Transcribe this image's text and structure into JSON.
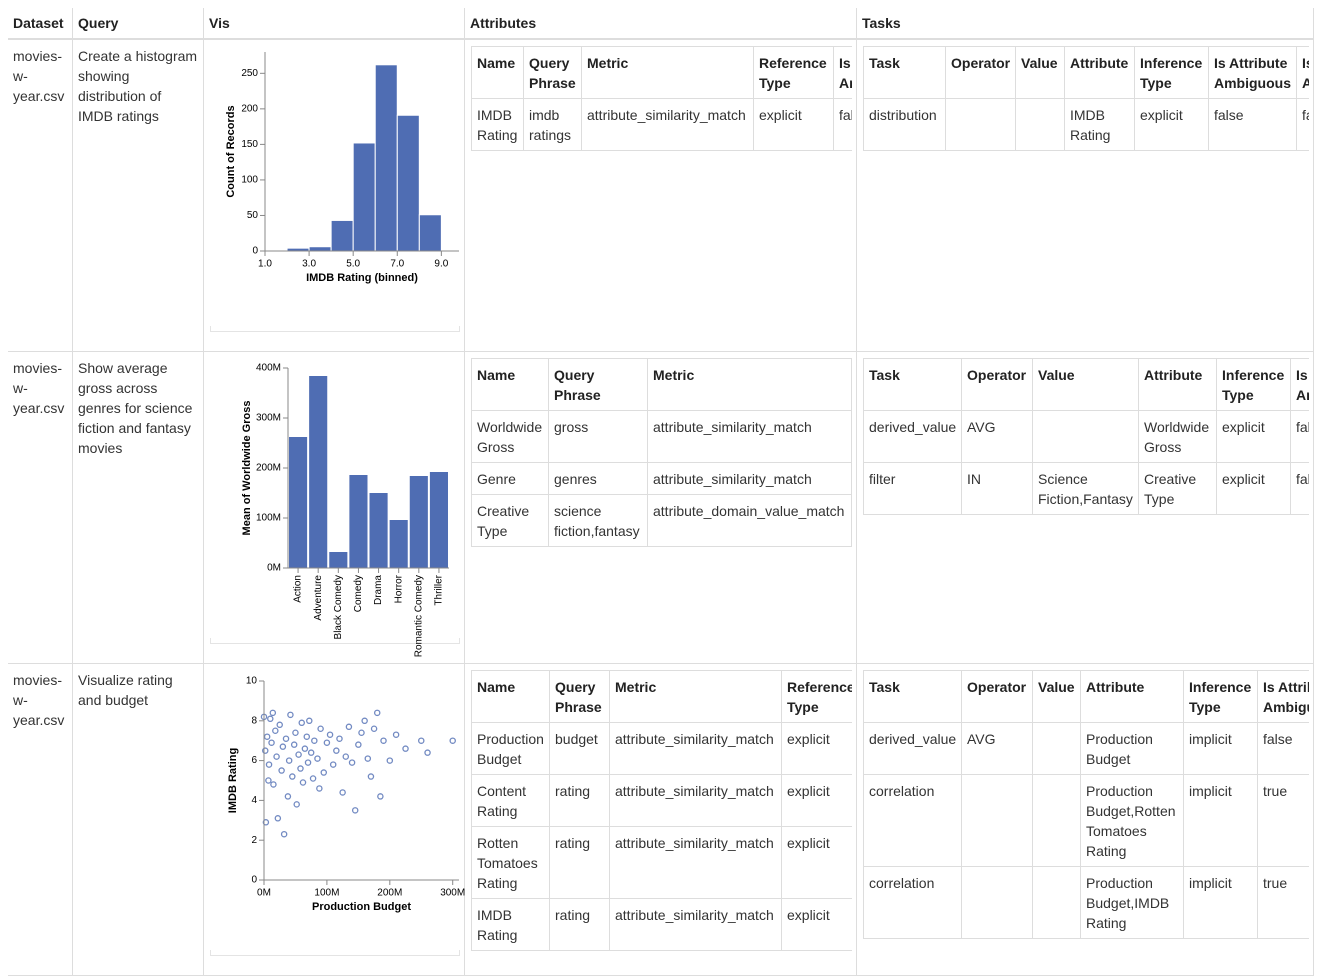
{
  "table": {
    "headers": [
      "Dataset",
      "Query",
      "Vis",
      "Attributes",
      "Tasks"
    ],
    "rows": [
      {
        "dataset": "movies-w-year.csv",
        "query": "Create a histogram showing distribution of IMDB ratings",
        "attributes": {
          "headers": [
            "Name",
            "Query Phrase",
            "Metric",
            "Reference Type",
            "Is Ambiguous"
          ],
          "rows": [
            [
              "IMDB Rating",
              "imdb ratings",
              "attribute_similarity_match",
              "explicit",
              "false"
            ]
          ]
        },
        "tasks": {
          "headers": [
            "Task",
            "Operator",
            "Value",
            "Attribute",
            "Inference Type",
            "Is Attribute Ambiguous",
            "Is Value Ambiguous"
          ],
          "rows": [
            [
              "distribution",
              null,
              null,
              "IMDB Rating",
              "explicit",
              "false",
              "false"
            ]
          ]
        }
      },
      {
        "dataset": "movies-w-year.csv",
        "query": "Show average gross across genres for science fiction and fantasy movies",
        "attributes": {
          "headers": [
            "Name",
            "Query Phrase",
            "Metric"
          ],
          "rows": [
            [
              "Worldwide Gross",
              "gross",
              "attribute_similarity_match"
            ],
            [
              "Genre",
              "genres",
              "attribute_similarity_match"
            ],
            [
              "Creative Type",
              "science fiction,fantasy",
              "attribute_domain_value_match"
            ]
          ]
        },
        "tasks": {
          "headers": [
            "Task",
            "Operator",
            "Value",
            "Attribute",
            "Inference Type",
            "Is Ambiguous"
          ],
          "rows": [
            [
              "derived_value",
              "AVG",
              null,
              "Worldwide Gross",
              "explicit",
              "false"
            ],
            [
              "filter",
              "IN",
              "Science Fiction,Fantasy",
              "Creative Type",
              "explicit",
              "false"
            ]
          ]
        }
      },
      {
        "dataset": "movies-w-year.csv",
        "query": "Visualize rating and budget",
        "attributes": {
          "headers": [
            "Name",
            "Query Phrase",
            "Metric",
            "Reference Type"
          ],
          "rows": [
            [
              "Production Budget",
              "budget",
              "attribute_similarity_match",
              "explicit"
            ],
            [
              "Content Rating",
              "rating",
              "attribute_similarity_match",
              "explicit"
            ],
            [
              "Rotten Tomatoes Rating",
              "rating",
              "attribute_similarity_match",
              "explicit"
            ],
            [
              "IMDB Rating",
              "rating",
              "attribute_similarity_match",
              "explicit"
            ]
          ]
        },
        "tasks": {
          "headers": [
            "Task",
            "Operator",
            "Value",
            "Attribute",
            "Inference Type",
            "Is Attribute Ambiguous"
          ],
          "rows": [
            [
              "derived_value",
              "AVG",
              null,
              "Production Budget",
              "implicit",
              "false"
            ],
            [
              "correlation",
              null,
              null,
              "Production Budget,Rotten Tomatoes Rating",
              "implicit",
              "true"
            ],
            [
              "correlation",
              null,
              null,
              "Production Budget,IMDB Rating",
              "implicit",
              "true"
            ]
          ]
        }
      }
    ]
  },
  "chart_data": [
    {
      "type": "histogram",
      "x_label": "IMDB Rating (binned)",
      "y_label": "Count of Records",
      "color": "#4f6db3",
      "bins": [
        1,
        2,
        3,
        4,
        5,
        6,
        7,
        8,
        9
      ],
      "values": [
        1,
        4,
        6,
        43,
        152,
        262,
        191,
        51
      ],
      "xlim": [
        1,
        9.8
      ],
      "xticks": [
        {
          "value": 1,
          "label": "1.0"
        },
        {
          "value": 3,
          "label": "3.0"
        },
        {
          "value": 5,
          "label": "5.0"
        },
        {
          "value": 7,
          "label": "7.0"
        },
        {
          "value": 9,
          "label": "9.0"
        }
      ],
      "ylim": [
        0,
        280
      ],
      "yticks": [
        0,
        50,
        100,
        150,
        200,
        250
      ]
    },
    {
      "type": "bar",
      "y_label": "Mean of Worldwide Gross",
      "color": "#4f6db3",
      "categories": [
        "Action",
        "Adventure",
        "Black Comedy",
        "Comedy",
        "Drama",
        "Horror",
        "Romantic Comedy",
        "Thriller"
      ],
      "values": [
        262000000,
        384000000,
        32000000,
        186000000,
        150000000,
        96000000,
        184000000,
        192000000
      ],
      "ylim": [
        0,
        400000000
      ],
      "yticks": [
        {
          "value": 0,
          "label": "0M"
        },
        {
          "value": 100000000,
          "label": "100M"
        },
        {
          "value": 200000000,
          "label": "200M"
        },
        {
          "value": 300000000,
          "label": "300M"
        },
        {
          "value": 400000000,
          "label": "400M"
        }
      ]
    },
    {
      "type": "scatter",
      "x_label": "Production Budget",
      "y_label": "IMDB Rating",
      "color": "#4f6db3",
      "x": [
        2000000,
        5000000,
        8000000,
        10000000,
        12000000,
        15000000,
        18000000,
        20000000,
        22000000,
        25000000,
        28000000,
        30000000,
        32000000,
        35000000,
        38000000,
        40000000,
        42000000,
        45000000,
        48000000,
        50000000,
        52000000,
        55000000,
        58000000,
        60000000,
        62000000,
        65000000,
        68000000,
        70000000,
        72000000,
        75000000,
        78000000,
        80000000,
        85000000,
        88000000,
        90000000,
        95000000,
        100000000,
        105000000,
        110000000,
        115000000,
        120000000,
        125000000,
        130000000,
        135000000,
        140000000,
        145000000,
        150000000,
        155000000,
        160000000,
        165000000,
        170000000,
        175000000,
        180000000,
        185000000,
        190000000,
        200000000,
        210000000,
        225000000,
        250000000,
        260000000,
        300000000,
        0,
        3000000,
        7000000,
        14000000
      ],
      "y": [
        6.5,
        7.2,
        5.8,
        8.1,
        6.9,
        4.8,
        7.5,
        6.2,
        3.1,
        7.8,
        5.5,
        6.7,
        2.3,
        7.1,
        4.2,
        6.0,
        8.3,
        5.2,
        6.8,
        7.4,
        3.8,
        6.3,
        5.6,
        7.9,
        4.9,
        6.6,
        7.2,
        5.9,
        8.0,
        6.4,
        5.1,
        7.0,
        6.1,
        4.6,
        7.6,
        5.4,
        6.9,
        7.3,
        5.8,
        6.5,
        7.1,
        4.4,
        6.2,
        7.7,
        5.9,
        3.5,
        6.8,
        7.4,
        8.0,
        6.1,
        5.2,
        7.6,
        8.4,
        4.2,
        7.0,
        6.0,
        7.3,
        6.6,
        7.0,
        6.4,
        7.0,
        8.2,
        2.9,
        5.0,
        8.4
      ],
      "xlim": [
        0,
        310000000
      ],
      "xticks": [
        {
          "value": 0,
          "label": "0M"
        },
        {
          "value": 100000000,
          "label": "100M"
        },
        {
          "value": 200000000,
          "label": "200M"
        },
        {
          "value": 300000000,
          "label": "300M"
        }
      ],
      "ylim": [
        0,
        10
      ],
      "yticks": [
        0,
        2,
        4,
        6,
        8,
        10
      ]
    }
  ]
}
